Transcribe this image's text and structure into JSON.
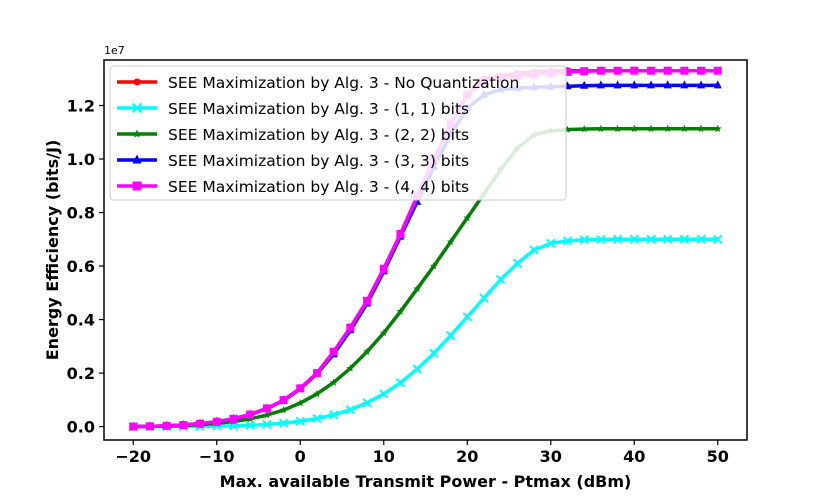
{
  "chart_data": {
    "type": "line",
    "xlabel": "Max. available Transmit Power - Ptmax (dBm)",
    "ylabel": "Energy Efficiency (bits/J)",
    "y_offset_label": "1e7",
    "y_scale": 10000000,
    "xlim": [
      -23.5,
      53.5
    ],
    "ylim": [
      -0.05,
      1.37
    ],
    "x_ticks": [
      -20,
      -10,
      0,
      10,
      20,
      30,
      40,
      50
    ],
    "x_tick_labels": [
      "−20",
      "−10",
      "0",
      "10",
      "20",
      "30",
      "40",
      "50"
    ],
    "y_ticks": [
      0.0,
      0.2,
      0.4,
      0.6,
      0.8,
      1.0,
      1.2
    ],
    "y_tick_labels": [
      "0.0",
      "0.2",
      "0.4",
      "0.6",
      "0.8",
      "1.0",
      "1.2"
    ],
    "grid": false,
    "legend_position": "top-left",
    "x": [
      -20,
      -18,
      -16,
      -14,
      -12,
      -10,
      -8,
      -6,
      -4,
      -2,
      0,
      2,
      4,
      6,
      8,
      10,
      12,
      14,
      16,
      18,
      20,
      22,
      24,
      26,
      28,
      30,
      32,
      34,
      36,
      38,
      40,
      42,
      44,
      46,
      48,
      50
    ],
    "series": [
      {
        "name": "SEE Maximization by Alg. 3 - No Quantization",
        "color": "#ff0000",
        "marker": "circle",
        "values": [
          0.0,
          0.001,
          0.003,
          0.006,
          0.011,
          0.018,
          0.029,
          0.045,
          0.068,
          0.099,
          0.143,
          0.2,
          0.28,
          0.37,
          0.47,
          0.59,
          0.72,
          0.86,
          1.0,
          1.13,
          1.24,
          1.3,
          1.31,
          1.32,
          1.325,
          1.328,
          1.33,
          1.33,
          1.33,
          1.33,
          1.33,
          1.33,
          1.33,
          1.33,
          1.33,
          1.33
        ]
      },
      {
        "name": "SEE Maximization by Alg. 3 - (1, 1) bits",
        "color": "#00ffff",
        "marker": "x",
        "values": [
          0.0,
          0.0,
          0.0,
          0.0,
          0.001,
          0.002,
          0.003,
          0.005,
          0.008,
          0.013,
          0.02,
          0.03,
          0.044,
          0.063,
          0.089,
          0.122,
          0.164,
          0.215,
          0.274,
          0.34,
          0.41,
          0.48,
          0.55,
          0.61,
          0.66,
          0.685,
          0.694,
          0.698,
          0.699,
          0.7,
          0.7,
          0.7,
          0.7,
          0.7,
          0.7,
          0.7
        ]
      },
      {
        "name": "SEE Maximization by Alg. 3 - (2, 2) bits",
        "color": "#008000",
        "marker": "star",
        "values": [
          0.0,
          0.001,
          0.002,
          0.004,
          0.007,
          0.012,
          0.019,
          0.029,
          0.043,
          0.062,
          0.088,
          0.122,
          0.165,
          0.218,
          0.28,
          0.35,
          0.43,
          0.515,
          0.6,
          0.69,
          0.78,
          0.87,
          0.96,
          1.04,
          1.09,
          1.105,
          1.11,
          1.112,
          1.113,
          1.113,
          1.113,
          1.113,
          1.113,
          1.113,
          1.113,
          1.113
        ]
      },
      {
        "name": "SEE Maximization by Alg. 3 - (3, 3) bits",
        "color": "#0000ff",
        "marker": "triangle",
        "values": [
          0.0,
          0.001,
          0.003,
          0.006,
          0.011,
          0.018,
          0.029,
          0.045,
          0.067,
          0.098,
          0.141,
          0.198,
          0.27,
          0.36,
          0.46,
          0.58,
          0.71,
          0.84,
          0.97,
          1.09,
          1.19,
          1.24,
          1.26,
          1.265,
          1.268,
          1.27,
          1.272,
          1.274,
          1.275,
          1.275,
          1.275,
          1.275,
          1.275,
          1.275,
          1.275,
          1.275
        ]
      },
      {
        "name": "SEE Maximization by Alg. 3 - (4, 4) bits",
        "color": "#ff00ff",
        "marker": "square",
        "values": [
          0.0,
          0.001,
          0.003,
          0.006,
          0.011,
          0.018,
          0.029,
          0.045,
          0.068,
          0.099,
          0.143,
          0.2,
          0.28,
          0.37,
          0.47,
          0.59,
          0.72,
          0.86,
          1.0,
          1.13,
          1.24,
          1.29,
          1.305,
          1.31,
          1.315,
          1.32,
          1.325,
          1.328,
          1.33,
          1.33,
          1.33,
          1.33,
          1.33,
          1.33,
          1.33,
          1.33
        ]
      }
    ]
  }
}
